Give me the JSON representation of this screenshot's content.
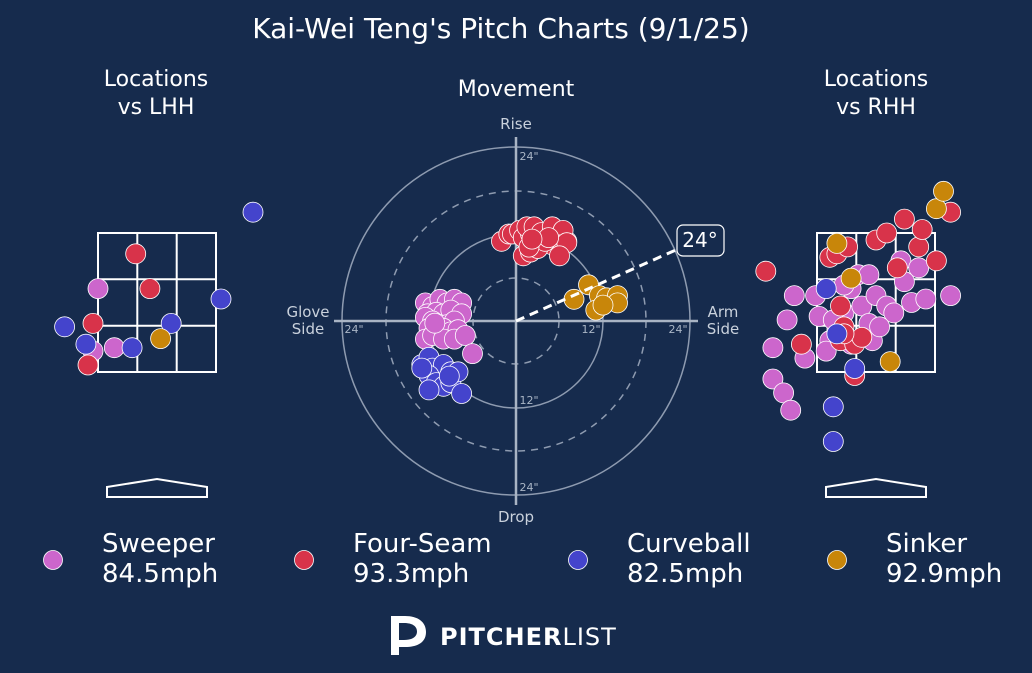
{
  "title": "Kai-Wei Teng's Pitch Charts (9/1/25)",
  "colors": {
    "background": "#162b4d",
    "Sweeper": "#cc66cc",
    "Four-Seam": "#d8334a",
    "Curveball": "#4444cc",
    "Sinker": "#c8860a"
  },
  "panels": {
    "lhh": {
      "title_line1": "Locations",
      "title_line2": "vs LHH"
    },
    "movement": {
      "title": "Movement",
      "rise": "Rise",
      "drop": "Drop",
      "glove_1": "Glove",
      "glove_2": "Side",
      "arm_1": "Arm",
      "arm_2": "Side",
      "arm_angle": "24°"
    },
    "rhh": {
      "title_line1": "Locations",
      "title_line2": "vs RHH"
    }
  },
  "legend": [
    {
      "pitch": "Sweeper",
      "speed": "84.5mph"
    },
    {
      "pitch": "Four-Seam",
      "speed": "93.3mph"
    },
    {
      "pitch": "Curveball",
      "speed": "82.5mph"
    },
    {
      "pitch": "Sinker",
      "speed": "92.9mph"
    }
  ],
  "brand": {
    "bold": "PITCHER",
    "light": "LIST"
  },
  "chart_data": [
    {
      "type": "scatter",
      "title": "Locations vs LHH",
      "xlim": [
        -1.7,
        1.7
      ],
      "ylim": [
        0.35,
        4.8
      ],
      "zone": {
        "x": [
          -0.83,
          0.83
        ],
        "y": [
          1.5,
          3.5
        ]
      },
      "series": [
        {
          "name": "Sweeper",
          "points": [
            [
              -0.83,
              2.7
            ],
            [
              -0.9,
              1.8
            ],
            [
              -0.6,
              1.85
            ]
          ]
        },
        {
          "name": "Four-Seam",
          "points": [
            [
              -0.3,
              3.2
            ],
            [
              -0.1,
              2.7
            ],
            [
              -0.9,
              2.2
            ],
            [
              -0.97,
              1.6
            ]
          ]
        },
        {
          "name": "Curveball",
          "points": [
            [
              1.35,
              3.8
            ],
            [
              0.9,
              2.55
            ],
            [
              -1.3,
              2.15
            ],
            [
              0.2,
              2.2
            ],
            [
              -1.0,
              1.9
            ],
            [
              -0.35,
              1.85
            ]
          ]
        },
        {
          "name": "Sinker",
          "points": [
            [
              0.05,
              1.98
            ]
          ]
        }
      ]
    },
    {
      "type": "scatter",
      "title": "Movement",
      "xlabel": "Glove Side / Arm Side (in)",
      "ylabel": "Drop / Rise (in)",
      "rings": [
        "12\"",
        "24\""
      ],
      "arm_angle_deg": 24,
      "xlim": [
        -25,
        25
      ],
      "ylim": [
        -25,
        25
      ],
      "series": [
        {
          "name": "Sweeper",
          "points": [
            [
              -12.5,
              2.5
            ],
            [
              -11.5,
              2.0
            ],
            [
              -10.5,
              3.0
            ],
            [
              -9.5,
              2.5
            ],
            [
              -8.5,
              3.0
            ],
            [
              -7.5,
              2.5
            ],
            [
              -12.2,
              1.0
            ],
            [
              -11.0,
              1.2
            ],
            [
              -10.0,
              1.0
            ],
            [
              -9.0,
              1.5
            ],
            [
              -7.5,
              1.0
            ],
            [
              -12.5,
              0.5
            ],
            [
              -11.5,
              0.0
            ],
            [
              -10.5,
              -0.5
            ],
            [
              -9.5,
              -0.5
            ],
            [
              -8.5,
              0.0
            ],
            [
              -12.0,
              -1.0
            ],
            [
              -11.0,
              -1.5
            ],
            [
              -10.0,
              -1.0
            ],
            [
              -9.0,
              -1.5
            ],
            [
              -8.0,
              -1.2
            ],
            [
              -12.5,
              -2.5
            ],
            [
              -11.5,
              -2.0
            ],
            [
              -10.0,
              -2.5
            ],
            [
              -8.5,
              -2.5
            ],
            [
              -7.0,
              -2.0
            ],
            [
              -6.0,
              -4.5
            ],
            [
              -11.2,
              -0.3
            ]
          ]
        },
        {
          "name": "Four-Seam",
          "points": [
            [
              -2.0,
              11.0
            ],
            [
              -1.0,
              12.0
            ],
            [
              -0.5,
              12.0
            ],
            [
              0.5,
              12.5
            ],
            [
              1.0,
              11.5
            ],
            [
              2.0,
              12.0
            ],
            [
              3.0,
              12.0
            ],
            [
              4.0,
              12.0
            ],
            [
              5.0,
              12.5
            ],
            [
              6.0,
              11.8
            ],
            [
              7.0,
              11.0
            ],
            [
              1.5,
              13.0
            ],
            [
              2.5,
              13.0
            ],
            [
              3.5,
              12.2
            ],
            [
              5.0,
              13.0
            ],
            [
              6.5,
              12.5
            ],
            [
              1.0,
              9.0
            ],
            [
              5.0,
              10.5
            ],
            [
              6.0,
              10.5
            ],
            [
              7.0,
              10.8
            ],
            [
              2.0,
              9.5
            ],
            [
              3.0,
              10.0
            ],
            [
              4.0,
              11.0
            ],
            [
              6.0,
              9.0
            ],
            [
              4.5,
              11.5
            ],
            [
              1.8,
              10.2
            ],
            [
              2.2,
              11.3
            ]
          ]
        },
        {
          "name": "Curveball",
          "points": [
            [
              -13.0,
              -6.0
            ],
            [
              -12.0,
              -5.0
            ],
            [
              -11.5,
              -6.5
            ],
            [
              -10.0,
              -6.0
            ],
            [
              -9.0,
              -7.0
            ],
            [
              -12.0,
              -7.5
            ],
            [
              -11.0,
              -8.5
            ],
            [
              -10.0,
              -9.0
            ],
            [
              -9.0,
              -8.5
            ],
            [
              -12.0,
              -9.5
            ],
            [
              -7.5,
              -10.0
            ],
            [
              -8.0,
              -7.0
            ],
            [
              -13.0,
              -6.5
            ],
            [
              -9.2,
              -7.6
            ]
          ]
        },
        {
          "name": "Sinker",
          "points": [
            [
              10.0,
              5.0
            ],
            [
              11.5,
              3.5
            ],
            [
              12.5,
              3.2
            ],
            [
              14.0,
              3.5
            ],
            [
              14.0,
              2.5
            ],
            [
              8.0,
              3.0
            ],
            [
              11.0,
              1.5
            ],
            [
              12.0,
              2.2
            ]
          ]
        }
      ]
    },
    {
      "type": "scatter",
      "title": "Locations vs RHH",
      "xlim": [
        -1.7,
        1.7
      ],
      "ylim": [
        0.35,
        4.8
      ],
      "zone": {
        "x": [
          -0.83,
          0.83
        ],
        "y": [
          1.5,
          3.5
        ]
      },
      "series": [
        {
          "name": "Sweeper",
          "points": [
            [
              -1.45,
              1.85
            ],
            [
              -1.45,
              1.4
            ],
            [
              -1.3,
              1.2
            ],
            [
              -1.2,
              0.95
            ],
            [
              -1.0,
              1.7
            ],
            [
              -0.85,
              2.6
            ],
            [
              -0.8,
              2.3
            ],
            [
              -0.65,
              1.95
            ],
            [
              -0.55,
              2.1
            ],
            [
              -0.45,
              2.35
            ],
            [
              -0.35,
              2.7
            ],
            [
              -0.25,
              2.9
            ],
            [
              -0.2,
              2.45
            ],
            [
              -0.1,
              2.2
            ],
            [
              -0.05,
              1.95
            ],
            [
              0.0,
              2.6
            ],
            [
              0.15,
              2.45
            ],
            [
              0.25,
              2.35
            ],
            [
              0.35,
              3.1
            ],
            [
              0.5,
              2.5
            ],
            [
              0.6,
              3.0
            ],
            [
              0.7,
              2.55
            ],
            [
              1.05,
              2.6
            ],
            [
              -1.15,
              2.6
            ],
            [
              -0.7,
              1.8
            ],
            [
              -0.35,
              1.9
            ],
            [
              0.05,
              2.15
            ],
            [
              -0.45,
              2.75
            ],
            [
              -1.25,
              2.25
            ],
            [
              0.4,
              2.8
            ],
            [
              -0.6,
              2.25
            ],
            [
              -0.1,
              2.9
            ]
          ]
        },
        {
          "name": "Four-Seam",
          "points": [
            [
              -1.55,
              2.95
            ],
            [
              -1.05,
              1.9
            ],
            [
              -0.65,
              3.15
            ],
            [
              -0.55,
              3.2
            ],
            [
              -0.5,
              1.95
            ],
            [
              -0.45,
              2.15
            ],
            [
              -0.3,
              1.9
            ],
            [
              -0.2,
              2.0
            ],
            [
              0.0,
              3.4
            ],
            [
              0.15,
              3.5
            ],
            [
              0.4,
              3.7
            ],
            [
              0.6,
              3.3
            ],
            [
              0.65,
              3.55
            ],
            [
              0.85,
              3.1
            ],
            [
              1.05,
              3.8
            ],
            [
              -0.4,
              3.3
            ],
            [
              -0.5,
              2.45
            ],
            [
              -0.3,
              1.45
            ],
            [
              -0.45,
              2.05
            ],
            [
              0.3,
              3.0
            ]
          ]
        },
        {
          "name": "Curveball",
          "points": [
            [
              -0.7,
              2.7
            ],
            [
              -0.55,
              2.05
            ],
            [
              -0.3,
              1.55
            ],
            [
              -0.6,
              1.0
            ],
            [
              -0.6,
              0.5
            ]
          ]
        },
        {
          "name": "Sinker",
          "points": [
            [
              -0.55,
              3.35
            ],
            [
              -0.35,
              2.85
            ],
            [
              0.2,
              1.65
            ],
            [
              0.85,
              3.85
            ],
            [
              0.95,
              4.1
            ]
          ]
        }
      ]
    }
  ]
}
